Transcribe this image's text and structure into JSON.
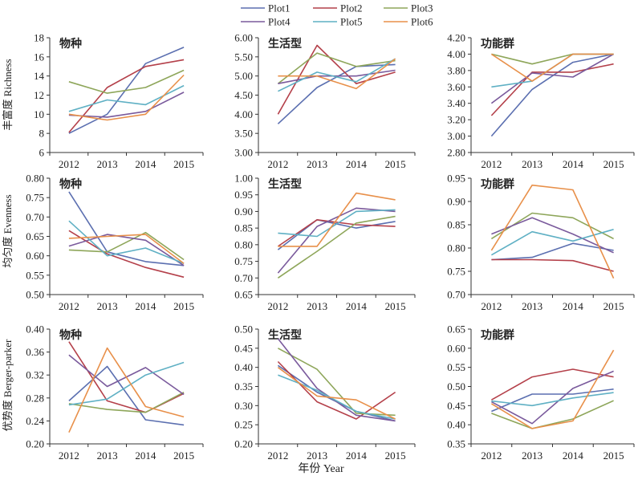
{
  "figure": {
    "xlabel": "年份 Year",
    "row_ylabels": [
      "丰富度 Richness",
      "均匀度 Evenness",
      "优势度 Berger-parker"
    ],
    "legend": [
      "Plot1",
      "Plot2",
      "Plot3",
      "Plot4",
      "Plot5",
      "Plot6"
    ],
    "colors": {
      "Plot1": "#5b6fb0",
      "Plot2": "#b4404a",
      "Plot3": "#8ea65a",
      "Plot4": "#7a5a9c",
      "Plot5": "#5fb0c4",
      "Plot6": "#e8904a"
    }
  },
  "chart_data": [
    {
      "type": "line",
      "title": "物种",
      "ylabel": "丰富度 Richness",
      "x": [
        "2012",
        "2013",
        "2014",
        "2015"
      ],
      "ylim": [
        6,
        18
      ],
      "yticks": [
        "6",
        "8",
        "10",
        "12",
        "14",
        "16",
        "18"
      ],
      "series": [
        {
          "name": "Plot1",
          "values": [
            8.0,
            10.0,
            15.3,
            17.0
          ]
        },
        {
          "name": "Plot2",
          "values": [
            8.1,
            12.8,
            15.0,
            15.7
          ]
        },
        {
          "name": "Plot3",
          "values": [
            13.4,
            12.2,
            12.8,
            14.6
          ]
        },
        {
          "name": "Plot4",
          "values": [
            9.9,
            9.7,
            10.3,
            12.3
          ]
        },
        {
          "name": "Plot5",
          "values": [
            10.3,
            11.5,
            11.0,
            13.0
          ]
        },
        {
          "name": "Plot6",
          "values": [
            10.0,
            9.4,
            10.0,
            14.1
          ]
        }
      ]
    },
    {
      "type": "line",
      "title": "生活型",
      "ylabel": "丰富度 Richness",
      "x": [
        "2012",
        "2013",
        "2014",
        "2015"
      ],
      "ylim": [
        3,
        6
      ],
      "yticks": [
        "3.00",
        "3.50",
        "4.00",
        "4.50",
        "5.00",
        "5.50",
        "6.00"
      ],
      "series": [
        {
          "name": "Plot1",
          "values": [
            3.75,
            4.7,
            5.25,
            5.3
          ]
        },
        {
          "name": "Plot2",
          "values": [
            4.0,
            5.8,
            4.8,
            5.1
          ]
        },
        {
          "name": "Plot3",
          "values": [
            4.8,
            5.6,
            5.25,
            5.4
          ]
        },
        {
          "name": "Plot4",
          "values": [
            4.8,
            5.0,
            5.0,
            5.15
          ]
        },
        {
          "name": "Plot5",
          "values": [
            4.6,
            5.1,
            4.85,
            5.45
          ]
        },
        {
          "name": "Plot6",
          "values": [
            5.0,
            5.0,
            4.67,
            5.45
          ]
        }
      ]
    },
    {
      "type": "line",
      "title": "功能群",
      "ylabel": "丰富度 Richness",
      "x": [
        "2012",
        "2013",
        "2014",
        "2015"
      ],
      "ylim": [
        2.8,
        4.2
      ],
      "yticks": [
        "2.80",
        "3.00",
        "3.20",
        "3.40",
        "3.60",
        "3.80",
        "4.00",
        "4.20"
      ],
      "series": [
        {
          "name": "Plot1",
          "values": [
            3.0,
            3.57,
            3.9,
            4.0
          ]
        },
        {
          "name": "Plot2",
          "values": [
            3.25,
            3.78,
            3.78,
            3.88
          ]
        },
        {
          "name": "Plot3",
          "values": [
            4.0,
            3.88,
            4.0,
            4.0
          ]
        },
        {
          "name": "Plot4",
          "values": [
            3.4,
            3.77,
            3.72,
            4.0
          ]
        },
        {
          "name": "Plot5",
          "values": [
            3.6,
            3.67,
            4.0,
            4.0
          ]
        },
        {
          "name": "Plot6",
          "values": [
            4.0,
            3.67,
            4.0,
            4.0
          ]
        }
      ]
    },
    {
      "type": "line",
      "title": "物种",
      "ylabel": "均匀度 Evenness",
      "x": [
        "2012",
        "2013",
        "2014",
        "2015"
      ],
      "ylim": [
        0.5,
        0.8
      ],
      "yticks": [
        "0.50",
        "0.55",
        "0.60",
        "0.65",
        "0.70",
        "0.75",
        "0.80"
      ],
      "series": [
        {
          "name": "Plot1",
          "values": [
            0.765,
            0.61,
            0.585,
            0.575
          ]
        },
        {
          "name": "Plot2",
          "values": [
            0.665,
            0.605,
            0.57,
            0.545
          ]
        },
        {
          "name": "Plot3",
          "values": [
            0.615,
            0.61,
            0.66,
            0.59
          ]
        },
        {
          "name": "Plot4",
          "values": [
            0.625,
            0.655,
            0.64,
            0.575
          ]
        },
        {
          "name": "Plot5",
          "values": [
            0.69,
            0.6,
            0.62,
            0.58
          ]
        },
        {
          "name": "Plot6",
          "values": [
            0.645,
            0.65,
            0.655,
            0.58
          ]
        }
      ]
    },
    {
      "type": "line",
      "title": "生活型",
      "ylabel": "均匀度 Evenness",
      "x": [
        "2012",
        "2013",
        "2014",
        "2015"
      ],
      "ylim": [
        0.65,
        1.0
      ],
      "yticks": [
        "0.65",
        "0.70",
        "0.75",
        "0.80",
        "0.85",
        "0.90",
        "0.95",
        "1.00"
      ],
      "series": [
        {
          "name": "Plot1",
          "values": [
            0.785,
            0.875,
            0.85,
            0.87
          ]
        },
        {
          "name": "Plot2",
          "values": [
            0.795,
            0.875,
            0.86,
            0.855
          ]
        },
        {
          "name": "Plot3",
          "values": [
            0.7,
            0.78,
            0.865,
            0.885
          ]
        },
        {
          "name": "Plot4",
          "values": [
            0.715,
            0.855,
            0.91,
            0.9
          ]
        },
        {
          "name": "Plot5",
          "values": [
            0.835,
            0.825,
            0.9,
            0.905
          ]
        },
        {
          "name": "Plot6",
          "values": [
            0.795,
            0.795,
            0.955,
            0.935
          ]
        }
      ]
    },
    {
      "type": "line",
      "title": "功能群",
      "ylabel": "均匀度 Evenness",
      "x": [
        "2012",
        "2013",
        "2014",
        "2015"
      ],
      "ylim": [
        0.7,
        0.95
      ],
      "yticks": [
        "0.70",
        "0.75",
        "0.80",
        "0.85",
        "0.90",
        "0.95"
      ],
      "series": [
        {
          "name": "Plot1",
          "values": [
            0.775,
            0.78,
            0.81,
            0.795
          ]
        },
        {
          "name": "Plot2",
          "values": [
            0.775,
            0.775,
            0.773,
            0.75
          ]
        },
        {
          "name": "Plot3",
          "values": [
            0.82,
            0.875,
            0.865,
            0.82
          ]
        },
        {
          "name": "Plot4",
          "values": [
            0.83,
            0.865,
            0.83,
            0.79
          ]
        },
        {
          "name": "Plot5",
          "values": [
            0.785,
            0.835,
            0.815,
            0.84
          ]
        },
        {
          "name": "Plot6",
          "values": [
            0.795,
            0.935,
            0.925,
            0.735
          ]
        }
      ]
    },
    {
      "type": "line",
      "title": "物种",
      "ylabel": "优势度 Berger-parker",
      "x": [
        "2012",
        "2013",
        "2014",
        "2015"
      ],
      "ylim": [
        0.2,
        0.4
      ],
      "yticks": [
        "0.20",
        "0.24",
        "0.28",
        "0.32",
        "0.36",
        "0.40"
      ],
      "series": [
        {
          "name": "Plot1",
          "values": [
            0.275,
            0.335,
            0.242,
            0.233
          ]
        },
        {
          "name": "Plot2",
          "values": [
            0.378,
            0.275,
            0.255,
            0.288
          ]
        },
        {
          "name": "Plot3",
          "values": [
            0.27,
            0.26,
            0.255,
            0.29
          ]
        },
        {
          "name": "Plot4",
          "values": [
            0.355,
            0.3,
            0.333,
            0.286
          ]
        },
        {
          "name": "Plot5",
          "values": [
            0.268,
            0.278,
            0.32,
            0.342
          ]
        },
        {
          "name": "Plot6",
          "values": [
            0.22,
            0.367,
            0.265,
            0.247
          ]
        }
      ]
    },
    {
      "type": "line",
      "title": "生活型",
      "ylabel": "优势度 Berger-parker",
      "x": [
        "2012",
        "2013",
        "2014",
        "2015"
      ],
      "ylim": [
        0.2,
        0.5
      ],
      "yticks": [
        "0.20",
        "0.25",
        "0.30",
        "0.35",
        "0.40",
        "0.45",
        "0.50"
      ],
      "series": [
        {
          "name": "Plot1",
          "values": [
            0.405,
            0.335,
            0.285,
            0.26
          ]
        },
        {
          "name": "Plot2",
          "values": [
            0.415,
            0.31,
            0.265,
            0.335
          ]
        },
        {
          "name": "Plot3",
          "values": [
            0.45,
            0.395,
            0.28,
            0.275
          ]
        },
        {
          "name": "Plot4",
          "values": [
            0.475,
            0.345,
            0.275,
            0.26
          ]
        },
        {
          "name": "Plot5",
          "values": [
            0.38,
            0.34,
            0.285,
            0.265
          ]
        },
        {
          "name": "Plot6",
          "values": [
            0.4,
            0.325,
            0.315,
            0.265
          ]
        }
      ]
    },
    {
      "type": "line",
      "title": "功能群",
      "ylabel": "优势度 Berger-parker",
      "x": [
        "2012",
        "2013",
        "2014",
        "2015"
      ],
      "ylim": [
        0.35,
        0.65
      ],
      "yticks": [
        "0.35",
        "0.40",
        "0.45",
        "0.50",
        "0.55",
        "0.60",
        "0.65"
      ],
      "series": [
        {
          "name": "Plot1",
          "values": [
            0.435,
            0.48,
            0.48,
            0.493
          ]
        },
        {
          "name": "Plot2",
          "values": [
            0.465,
            0.525,
            0.545,
            0.525
          ]
        },
        {
          "name": "Plot3",
          "values": [
            0.43,
            0.39,
            0.415,
            0.463
          ]
        },
        {
          "name": "Plot4",
          "values": [
            0.46,
            0.403,
            0.495,
            0.54
          ]
        },
        {
          "name": "Plot5",
          "values": [
            0.462,
            0.45,
            0.47,
            0.484
          ]
        },
        {
          "name": "Plot6",
          "values": [
            0.455,
            0.39,
            0.41,
            0.595
          ]
        }
      ]
    }
  ]
}
